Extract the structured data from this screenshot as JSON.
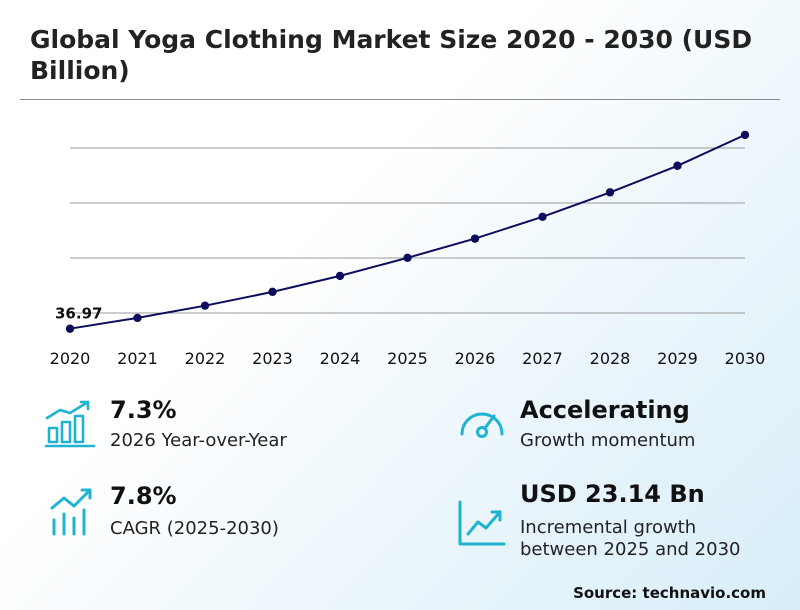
{
  "title": "Global Yoga Clothing Market Size 2020 - 2030 (USD Billion)",
  "chart_data": {
    "type": "line",
    "title": "Global Yoga Clothing Market Size 2020 - 2030 (USD Billion)",
    "xlabel": "",
    "ylabel": "",
    "x": [
      "2020",
      "2021",
      "2022",
      "2023",
      "2024",
      "2025",
      "2026",
      "2027",
      "2028",
      "2029",
      "2030"
    ],
    "values": [
      36.97,
      39.0,
      41.3,
      43.9,
      46.9,
      50.3,
      53.9,
      58.0,
      62.6,
      67.6,
      73.4
    ],
    "data_labels": [
      {
        "index": 0,
        "text": "36.97"
      }
    ],
    "ylim": [
      34.85,
      76.2
    ],
    "grid": true,
    "line_color": "#0d0d5c"
  },
  "stats": [
    {
      "icon": "bar-growth-icon",
      "value": "7.3%",
      "label": "2026 Year-over-Year"
    },
    {
      "icon": "gauge-icon",
      "value": "Accelerating",
      "label": "Growth momentum"
    },
    {
      "icon": "trend-bars-icon",
      "value": "7.8%",
      "label": "CAGR (2025-2030)"
    },
    {
      "icon": "line-growth-icon",
      "value": "USD 23.14 Bn",
      "label_line1": "Incremental growth",
      "label_line2": "between 2025 and 2030"
    }
  ],
  "accent_color": "#1fb3d1",
  "source": "Source: technavio.com"
}
